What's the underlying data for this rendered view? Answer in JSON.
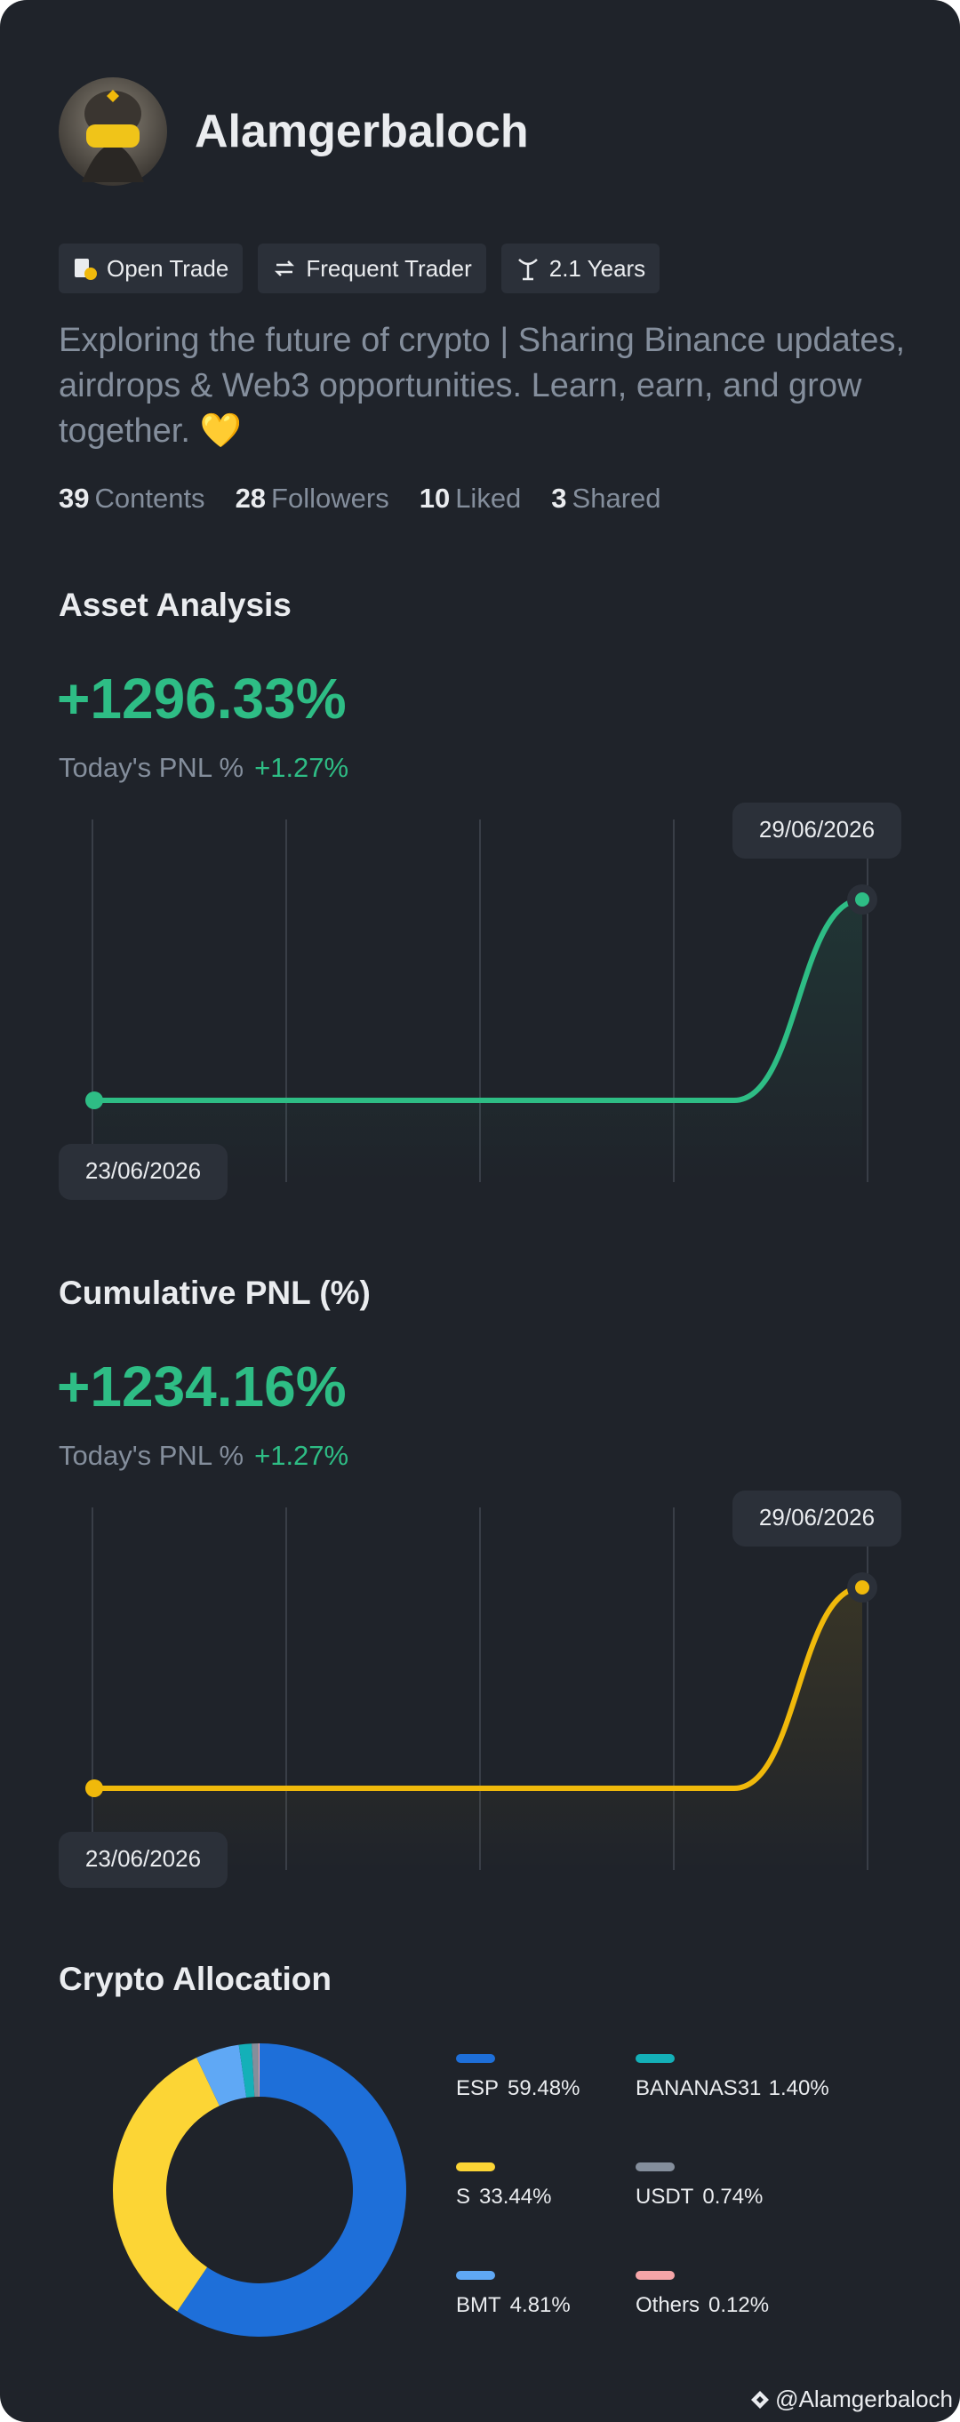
{
  "profile": {
    "name": "Alamgerbaloch",
    "tags": [
      "Open Trade",
      "Frequent Trader",
      "2.1 Years"
    ],
    "bio": "Exploring the future of crypto | Sharing Binance updates, airdrops & Web3 opportunities. Learn, earn, and grow together. 💛",
    "stats": [
      {
        "value": 39,
        "label": "Contents"
      },
      {
        "value": 28,
        "label": "Followers"
      },
      {
        "value": 10,
        "label": "Liked"
      },
      {
        "value": 3,
        "label": "Shared"
      }
    ]
  },
  "chart_data": [
    {
      "type": "line",
      "title": "Asset Analysis",
      "headline": "+1296.33%",
      "pnl_label": "Today's PNL %",
      "pnl_value": "+1.27%",
      "categories": [
        "23/06/2026",
        null,
        null,
        null,
        null,
        null,
        "29/06/2026"
      ],
      "values": [
        0,
        0,
        0,
        0,
        0,
        0,
        1296.33
      ],
      "color": "#2ebd85"
    },
    {
      "type": "line",
      "title": "Cumulative PNL (%)",
      "headline": "+1234.16%",
      "pnl_label": "Today's PNL %",
      "pnl_value": "+1.27%",
      "categories": [
        "23/06/2026",
        null,
        null,
        null,
        null,
        null,
        "29/06/2026"
      ],
      "values": [
        0,
        0,
        0,
        0,
        0,
        0,
        1234.16
      ],
      "color": "#f0b90b"
    },
    {
      "type": "pie",
      "title": "Crypto Allocation",
      "categories": [
        "ESP",
        "S",
        "BMT",
        "BANANAS31",
        "USDT",
        "Others"
      ],
      "values": [
        59.48,
        33.44,
        4.81,
        1.4,
        0.74,
        0.12
      ],
      "value_labels": [
        "59.48%",
        "33.44%",
        "4.81%",
        "1.40%",
        "0.74%",
        "0.12%"
      ],
      "colors": [
        "#1e6fd9",
        "#fcd535",
        "#5fa8f5",
        "#14b0b8",
        "#848e9c",
        "#f6a5a8"
      ]
    }
  ],
  "footer": {
    "handle": "@Alamgerbaloch"
  }
}
